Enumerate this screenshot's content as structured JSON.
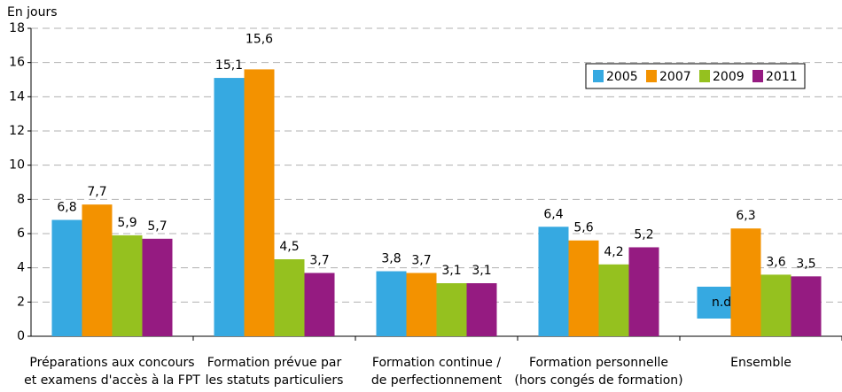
{
  "chart_data": {
    "type": "bar",
    "y_label": "En jours",
    "categories": [
      "Préparations aux concours\net examens d'accès à la FPT",
      "Formation prévue par\nles statuts particuliers",
      "Formation continue /\nde perfectionnement",
      "Formation personnelle\n(hors congés de formation)",
      "Ensemble"
    ],
    "series": [
      {
        "name": "2005",
        "color": "#36a9e1",
        "values": [
          6.8,
          15.1,
          3.8,
          6.4,
          null
        ],
        "value_labels": [
          "6,8",
          "15,1",
          "3,8",
          "6,4",
          null
        ]
      },
      {
        "name": "2007",
        "color": "#f39200",
        "values": [
          7.7,
          15.6,
          3.7,
          5.6,
          6.3
        ],
        "value_labels": [
          "7,7",
          "15,6",
          "3,7",
          "5,6",
          "6,3"
        ]
      },
      {
        "name": "2009",
        "color": "#95c11f",
        "values": [
          5.9,
          4.5,
          3.1,
          4.2,
          3.6
        ],
        "value_labels": [
          "5,9",
          "4,5",
          "3,1",
          "4,2",
          "3,6"
        ]
      },
      {
        "name": "2011",
        "color": "#951b81",
        "values": [
          5.7,
          3.7,
          3.1,
          5.2,
          3.5
        ],
        "value_labels": [
          "5,7",
          "3,7",
          "3,1",
          "5,2",
          "3,5"
        ]
      }
    ],
    "annotations": [
      {
        "text": "n.d. (*)"
      }
    ],
    "ylim": [
      0,
      18
    ],
    "yticks": [
      0,
      2,
      4,
      6,
      8,
      10,
      12,
      14,
      16,
      18
    ],
    "grid": true,
    "legend": "upper right"
  }
}
